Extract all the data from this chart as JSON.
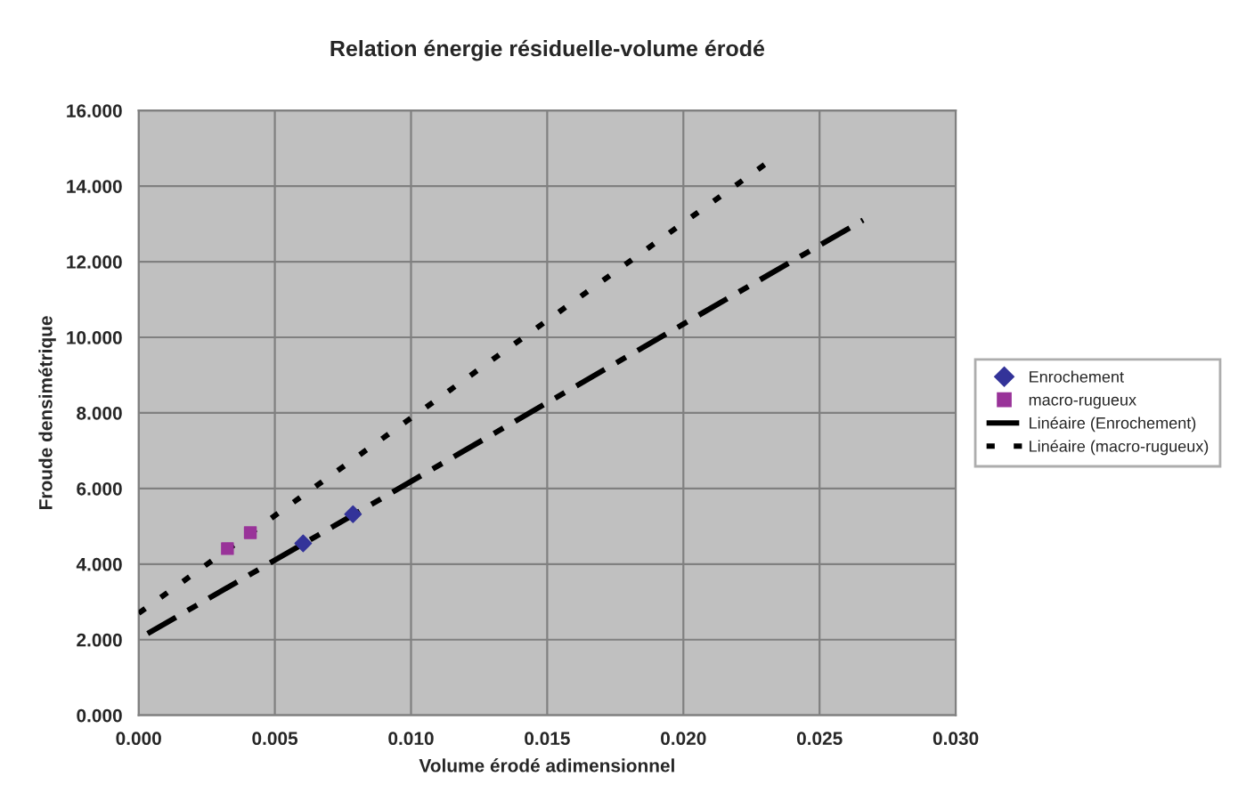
{
  "chart_data": {
    "type": "scatter",
    "title": "Relation énergie résiduelle-volume érodé",
    "xlabel": "Volume érodé adimensionnel",
    "ylabel": "Froude densimétrique",
    "series": [
      {
        "name": "Enrochement",
        "color": "#333399",
        "marker": "diamond",
        "x": [
          0.00604,
          0.00787
        ],
        "values": [
          4.55,
          5.32
        ]
      },
      {
        "name": "macro-rugueux",
        "color": "#993399",
        "marker": "square",
        "x": [
          0.00326,
          0.0041
        ],
        "values": [
          4.41,
          4.83
        ]
      },
      {
        "name": "Linéaire (Enrochement)",
        "type": "line",
        "color": "#000000",
        "line_style": "dashed",
        "marker": "none",
        "x": [
          0.00033,
          0.0266
        ],
        "values": [
          2.16,
          13.1
        ]
      },
      {
        "name": "Linéaire (macro-rugueux)",
        "type": "line",
        "color": "#000000",
        "line_style": "dotted",
        "marker": "none",
        "x": [
          0.0,
          0.0231
        ],
        "values": [
          2.7,
          14.63
        ]
      }
    ],
    "xlim": [
      0,
      0.03
    ],
    "ylim": [
      0,
      16
    ],
    "xticks": [
      {
        "value": 0,
        "label": "0.000"
      },
      {
        "value": 0.005,
        "label": "0.005"
      },
      {
        "value": 0.01,
        "label": "0.010"
      },
      {
        "value": 0.015,
        "label": "0.015"
      },
      {
        "value": 0.02,
        "label": "0.020"
      },
      {
        "value": 0.025,
        "label": "0.025"
      },
      {
        "value": 0.03,
        "label": "0.030"
      }
    ],
    "yticks": [
      {
        "value": 0,
        "label": "0.000"
      },
      {
        "value": 2,
        "label": "2.000"
      },
      {
        "value": 4,
        "label": "4.000"
      },
      {
        "value": 6,
        "label": "6.000"
      },
      {
        "value": 8,
        "label": "8.000"
      },
      {
        "value": 10,
        "label": "10.000"
      },
      {
        "value": 12,
        "label": "12.000"
      },
      {
        "value": 14,
        "label": "14.000"
      },
      {
        "value": 16,
        "label": "16.000"
      }
    ],
    "grid": true,
    "legend": "right"
  }
}
